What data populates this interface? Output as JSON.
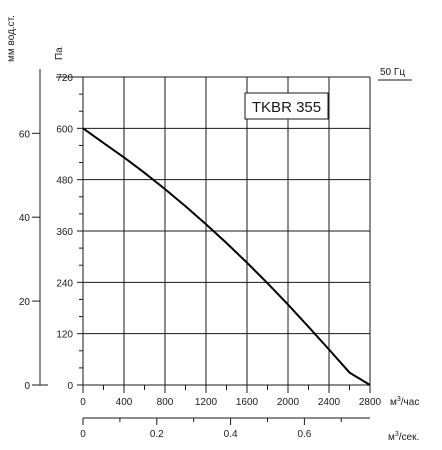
{
  "chart_data": {
    "type": "line",
    "title": "TKBR 355",
    "frequency_label": "50 Гц",
    "x": [
      0,
      200,
      400,
      600,
      800,
      1000,
      1200,
      1400,
      1600,
      1800,
      2000,
      2200,
      2400,
      2600,
      2800
    ],
    "series": [
      {
        "values": [
          600,
          566,
          532,
          496,
          458,
          418,
          376,
          332,
          286,
          238,
          188,
          136,
          83,
          29,
          0
        ]
      }
    ],
    "xlim": [
      0,
      2800
    ],
    "ylim": [
      0,
      720
    ],
    "x_ticks": [
      "0",
      "400",
      "800",
      "1200",
      "1600",
      "2000",
      "2400",
      "2800"
    ],
    "y_ticks": [
      "0",
      "120",
      "240",
      "360",
      "480",
      "600",
      "720"
    ],
    "x_unit": "м³/час",
    "y_unit": "Па",
    "grid": true,
    "secondary_y": {
      "label": "мм вод.ст.",
      "ticks": [
        "0",
        "20",
        "40",
        "60"
      ]
    },
    "secondary_x": {
      "label": "м³/сек.",
      "ticks": [
        "0",
        "0.2",
        "0.4",
        "0.6"
      ]
    }
  }
}
